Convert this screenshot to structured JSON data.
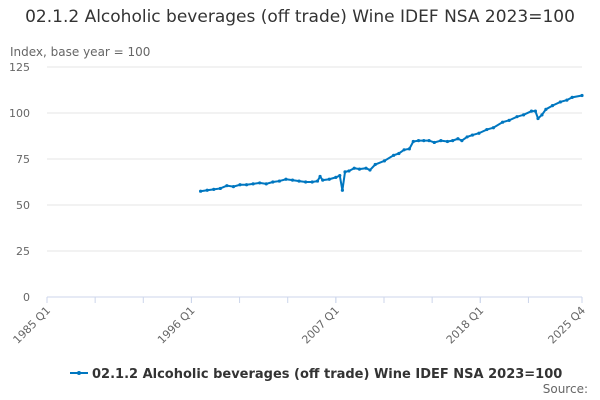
{
  "chart_data": {
    "type": "line",
    "title": "02.1.2 Alcoholic beverages (off trade) Wine IDEF NSA 2023=100",
    "ylabel": "Index, base year = 100",
    "xlabel": "",
    "source_label": "Source:",
    "ylim": [
      0,
      125
    ],
    "xlim": [
      1985.0,
      2025.75
    ],
    "yticks": [
      0,
      25,
      50,
      75,
      100,
      125
    ],
    "xticks": [
      {
        "label": "1985 Q1",
        "x": 1985.0
      },
      {
        "label": "1996 Q1",
        "x": 1996.0
      },
      {
        "label": "2007 Q1",
        "x": 2007.0
      },
      {
        "label": "2018 Q1",
        "x": 2018.0
      },
      {
        "label": "2025 Q4",
        "x": 2025.75
      }
    ],
    "grid": true,
    "legend": "bottom",
    "colors": {
      "series": "#0077c0",
      "grid": "#e6e6e6",
      "axis": "#ccd6eb"
    },
    "series": [
      {
        "name": "02.1.2 Alcoholic beverages (off trade) Wine IDEF NSA 2023=100",
        "points": [
          [
            1996.7,
            57.5
          ],
          [
            1997.2,
            58
          ],
          [
            1997.7,
            58.5
          ],
          [
            1998.2,
            59
          ],
          [
            1998.7,
            60.5
          ],
          [
            1999.2,
            60
          ],
          [
            1999.7,
            61
          ],
          [
            2000.2,
            61
          ],
          [
            2000.7,
            61.5
          ],
          [
            2001.2,
            62
          ],
          [
            2001.7,
            61.5
          ],
          [
            2002.2,
            62.5
          ],
          [
            2002.7,
            63
          ],
          [
            2003.2,
            64
          ],
          [
            2003.7,
            63.5
          ],
          [
            2004.2,
            63
          ],
          [
            2004.7,
            62.5
          ],
          [
            2005.2,
            62.5
          ],
          [
            2005.6,
            63
          ],
          [
            2005.8,
            65.5
          ],
          [
            2006.0,
            63.5
          ],
          [
            2006.5,
            64
          ],
          [
            2007.0,
            65
          ],
          [
            2007.3,
            66
          ],
          [
            2007.5,
            58
          ],
          [
            2007.7,
            68
          ],
          [
            2008.0,
            68.5
          ],
          [
            2008.4,
            70
          ],
          [
            2008.8,
            69.5
          ],
          [
            2009.3,
            70
          ],
          [
            2009.6,
            69
          ],
          [
            2010.0,
            72
          ],
          [
            2010.7,
            74
          ],
          [
            2011.4,
            77
          ],
          [
            2011.8,
            78
          ],
          [
            2012.2,
            80
          ],
          [
            2012.6,
            80.5
          ],
          [
            2012.9,
            84.5
          ],
          [
            2013.3,
            85
          ],
          [
            2013.7,
            85
          ],
          [
            2014.1,
            85
          ],
          [
            2014.5,
            84
          ],
          [
            2015.0,
            85
          ],
          [
            2015.5,
            84.5
          ],
          [
            2015.9,
            85
          ],
          [
            2016.3,
            86
          ],
          [
            2016.6,
            85
          ],
          [
            2017.0,
            87
          ],
          [
            2017.4,
            88
          ],
          [
            2017.9,
            89
          ],
          [
            2018.5,
            91
          ],
          [
            2019.0,
            92
          ],
          [
            2019.7,
            95
          ],
          [
            2020.2,
            96
          ],
          [
            2020.8,
            98
          ],
          [
            2021.3,
            99
          ],
          [
            2021.9,
            101
          ],
          [
            2022.2,
            101
          ],
          [
            2022.4,
            97
          ],
          [
            2022.7,
            99
          ],
          [
            2023.0,
            102
          ],
          [
            2023.5,
            104
          ],
          [
            2024.1,
            106
          ],
          [
            2024.6,
            107
          ],
          [
            2025.0,
            108.5
          ],
          [
            2025.75,
            109.5
          ]
        ]
      }
    ]
  }
}
